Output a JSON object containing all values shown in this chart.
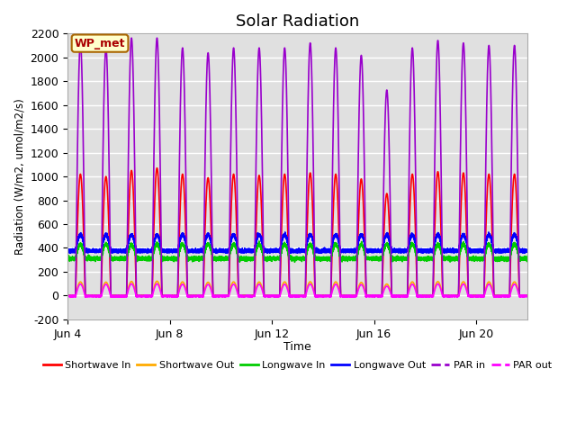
{
  "title": "Solar Radiation",
  "ylabel": "Radiation (W/m2, umol/m2/s)",
  "xlabel": "Time",
  "ylim": [
    -200,
    2200
  ],
  "yticks": [
    -200,
    0,
    200,
    400,
    600,
    800,
    1000,
    1200,
    1400,
    1600,
    1800,
    2000,
    2200
  ],
  "xtick_positions": [
    0,
    4,
    8,
    12,
    16
  ],
  "xtick_labels": [
    "Jun 4",
    "Jun 8",
    "Jun 12",
    "Jun 16",
    "Jun 20"
  ],
  "bg_color": "#e0e0e0",
  "annotation_text": "WP_met",
  "annotation_bg": "#ffffcc",
  "annotation_border": "#aa6600",
  "series": {
    "shortwave_in": {
      "color": "#ff0000",
      "label": "Shortwave In",
      "lw": 1.2
    },
    "shortwave_out": {
      "color": "#ffaa00",
      "label": "Shortwave Out",
      "lw": 1.2
    },
    "longwave_in": {
      "color": "#00cc00",
      "label": "Longwave In",
      "lw": 1.2
    },
    "longwave_out": {
      "color": "#0000ff",
      "label": "Longwave Out",
      "lw": 1.2
    },
    "par_in": {
      "color": "#9900cc",
      "label": "PAR in",
      "lw": 1.2
    },
    "par_out": {
      "color": "#ff00ff",
      "label": "PAR out",
      "lw": 1.2
    }
  },
  "n_days": 18,
  "ppd": 480
}
